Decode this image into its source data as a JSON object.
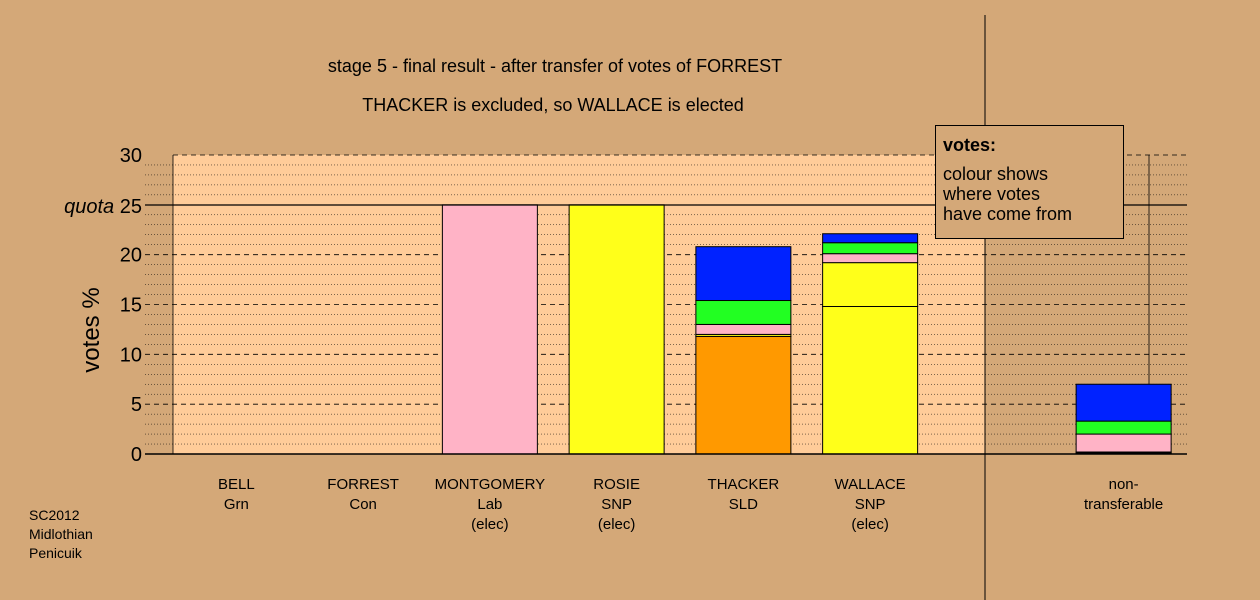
{
  "colors": {
    "background": "#D4A878",
    "plot_background": "#FFCC99",
    "Lab": "#FFB3C6",
    "SNP": "#FFFF1A",
    "SLD": "#FF9900",
    "Con": "#0022FF",
    "Grn": "#22FF22"
  },
  "footnote": [
    "SC2012",
    "Midlothian",
    "Penicuik"
  ],
  "legend": {
    "title": "votes:",
    "lines": [
      "colour shows",
      "where votes",
      "have come from"
    ]
  },
  "chart_data": {
    "type": "bar",
    "stacked": true,
    "title": "stage 5 - final result - after transfer of votes of FORREST",
    "subtitle": "THACKER is excluded, so WALLACE is elected",
    "ylabel": "votes %",
    "ylim": [
      0,
      30
    ],
    "yticks": [
      0,
      5,
      10,
      15,
      20,
      30
    ],
    "quota": {
      "value": 25,
      "label": "quota 25"
    },
    "grid": true,
    "categories": [
      {
        "name": "BELL",
        "party": "Grn",
        "status": ""
      },
      {
        "name": "FORREST",
        "party": "Con",
        "status": ""
      },
      {
        "name": "MONTGOMERY",
        "party": "Lab",
        "status": "(elec)"
      },
      {
        "name": "ROSIE",
        "party": "SNP",
        "status": "(elec)"
      },
      {
        "name": "THACKER",
        "party": "SLD",
        "status": ""
      },
      {
        "name": "WALLACE",
        "party": "SNP",
        "status": "(elec)"
      },
      {
        "name": "",
        "party": "",
        "status": ""
      },
      {
        "name": "non-",
        "party": "transferable",
        "status": ""
      }
    ],
    "stacks": [
      [],
      [],
      [
        {
          "source": "Lab",
          "value": 25.0
        }
      ],
      [
        {
          "source": "SNP",
          "value": 25.0
        }
      ],
      [
        {
          "source": "SLD",
          "value": 11.8
        },
        {
          "source": "SNP",
          "value": 0.2
        },
        {
          "source": "Lab",
          "value": 1.0
        },
        {
          "source": "Grn",
          "value": 2.4
        },
        {
          "source": "Con",
          "value": 5.4
        }
      ],
      [
        {
          "source": "SNP",
          "value": 14.8
        },
        {
          "source": "SNP",
          "value": 4.4
        },
        {
          "source": "Lab",
          "value": 0.9
        },
        {
          "source": "Grn",
          "value": 1.1
        },
        {
          "source": "Con",
          "value": 0.9
        }
      ],
      [],
      [
        {
          "source": "SNP",
          "value": 0.1
        },
        {
          "source": "SLD",
          "value": 0.1
        },
        {
          "source": "Lab",
          "value": 1.8
        },
        {
          "source": "Grn",
          "value": 1.3
        },
        {
          "source": "Con",
          "value": 3.7
        }
      ]
    ]
  }
}
